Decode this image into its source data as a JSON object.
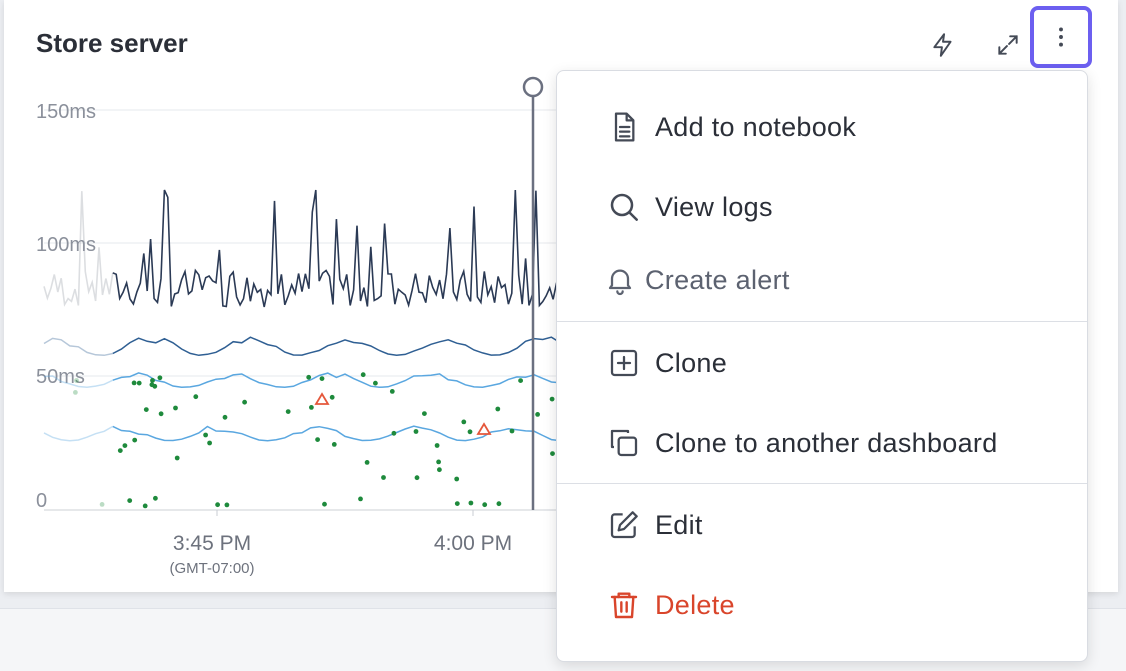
{
  "panel": {
    "title": "Store server",
    "toolbar": [
      {
        "icon": "lightning-icon"
      },
      {
        "icon": "expand-icon"
      },
      {
        "icon": "more-vertical-icon",
        "active": true
      }
    ]
  },
  "chart_data": {
    "type": "line",
    "y_ticks": [
      "150ms",
      "100ms",
      "50ms",
      "0"
    ],
    "x_ticks": [
      "3:45 PM",
      "4:00 PM"
    ],
    "x_sub": "(GMT-07:00)",
    "ylim": [
      0,
      150
    ],
    "series": [
      {
        "color": "#2b3a55",
        "range": [
          72,
          120
        ]
      },
      {
        "color": "#2f5f93",
        "range": [
          58,
          66
        ]
      },
      {
        "color": "#5aa7e0",
        "range": [
          46,
          52
        ]
      },
      {
        "color": "#5aa7e0",
        "range": [
          26,
          32
        ]
      }
    ],
    "anomaly_markers": 2,
    "colors": {
      "points": "#1e8a3c",
      "anomaly": "#e5573b",
      "cursor": "#6b7080"
    }
  },
  "menu": {
    "items": [
      {
        "label": "Add to notebook",
        "icon": "notebook-icon"
      },
      {
        "label": "View logs",
        "icon": "search-icon"
      },
      {
        "label": "Create alert",
        "icon": "bell-icon"
      },
      {
        "label": "Clone",
        "icon": "plus-square-icon"
      },
      {
        "label": "Clone to another dashboard",
        "icon": "copy-icon"
      },
      {
        "label": "Edit",
        "icon": "edit-icon"
      },
      {
        "label": "Delete",
        "icon": "trash-icon"
      }
    ],
    "colors": {
      "danger": "#d9452b",
      "accent": "#6c5ff0"
    }
  }
}
